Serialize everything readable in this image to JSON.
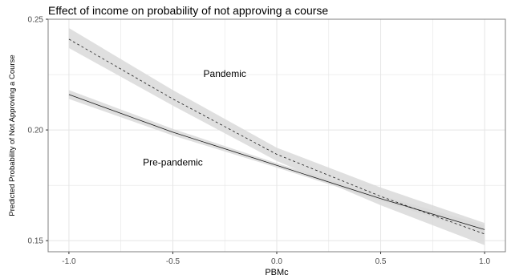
{
  "chart_data": {
    "type": "line",
    "title": "Effect of income on probability of not approving a course",
    "xlabel": "PBMc",
    "ylabel": "Predicted Probability of Not Approving a Course",
    "xlim": [
      -1.1,
      1.1
    ],
    "ylim": [
      0.145,
      0.25
    ],
    "x_ticks": [
      -1.0,
      -0.5,
      0.0,
      0.5,
      1.0
    ],
    "x_tick_labels": [
      "-1.0",
      "-0.5",
      "0.0",
      "0.5",
      "1.0"
    ],
    "y_ticks": [
      0.15,
      0.2,
      0.25
    ],
    "y_tick_labels": [
      "0.15",
      "0.20",
      "0.25"
    ],
    "grid": true,
    "legend": "none",
    "series": [
      {
        "name": "Pandemic",
        "style": "dashed",
        "x": [
          -1.0,
          -0.5,
          0.0,
          0.5,
          1.0
        ],
        "y": [
          0.241,
          0.214,
          0.189,
          0.17,
          0.153
        ],
        "lower": [
          0.237,
          0.211,
          0.186,
          0.166,
          0.148
        ],
        "upper": [
          0.246,
          0.218,
          0.192,
          0.174,
          0.158
        ]
      },
      {
        "name": "Pre-pandemic",
        "style": "solid",
        "x": [
          -1.0,
          -0.5,
          0.0,
          0.5,
          1.0
        ],
        "y": [
          0.216,
          0.199,
          0.184,
          0.169,
          0.155
        ],
        "lower": [
          0.214,
          0.1975,
          0.183,
          0.168,
          0.153
        ],
        "upper": [
          0.218,
          0.2005,
          0.185,
          0.1705,
          0.157
        ]
      }
    ],
    "annotations": [
      {
        "text": "Pandemic",
        "x": -0.25,
        "y": 0.224
      },
      {
        "text": "Pre-pandemic",
        "x": -0.5,
        "y": 0.184
      }
    ],
    "colors": {
      "band": "#d9d9d9",
      "line": "#1a1a1a",
      "grid": "#e5e5e5",
      "panel_border": "#7f7f7f"
    }
  }
}
